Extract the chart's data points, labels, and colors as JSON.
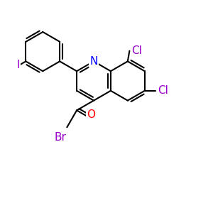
{
  "background": "#ffffff",
  "atoms": {
    "N": {
      "color": "#0000ff"
    },
    "O": {
      "color": "#ff0000"
    },
    "Cl": {
      "color": "#9900cc"
    },
    "Br": {
      "color": "#9900cc"
    },
    "I": {
      "color": "#9900cc"
    },
    "C": {
      "color": "#000000"
    }
  },
  "bond_color": "#000000",
  "bond_lw": 1.5,
  "font_size": 11
}
